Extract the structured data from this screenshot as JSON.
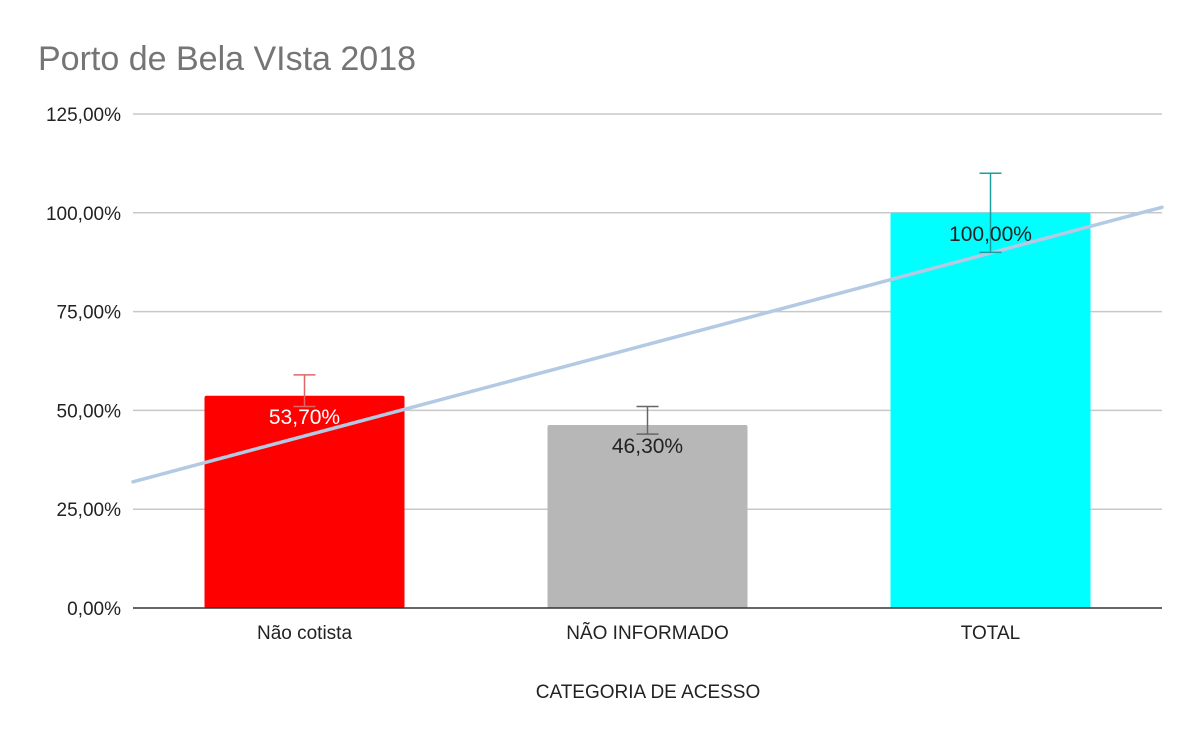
{
  "chart_data": {
    "type": "bar",
    "title": "Porto de Bela VIsta 2018",
    "xlabel": "CATEGORIA DE ACESSO",
    "ylabel": "",
    "categories": [
      "Não cotista",
      "NÃO INFORMADO",
      "TOTAL"
    ],
    "values": [
      53.7,
      46.3,
      100.0
    ],
    "data_labels": [
      "53,70%",
      "46,30%",
      "100,00%"
    ],
    "error_bar_upper": [
      59.0,
      51.0,
      110.0
    ],
    "error_bar_lower": [
      51.0,
      44.0,
      90.0
    ],
    "bar_colors": [
      "#ff0000",
      "#b7b7b7",
      "#00ffff"
    ],
    "error_bar_colors": [
      "#e06666",
      "#666666",
      "#1a9e9e"
    ],
    "label_colors": [
      "#ffffff",
      "#222222",
      "#222222"
    ],
    "ylim": [
      0,
      125
    ],
    "yticks": [
      0,
      25,
      50,
      75,
      100,
      125
    ],
    "ytick_labels": [
      "0,00%",
      "25,00%",
      "50,00%",
      "75,00%",
      "100,00%",
      "125,00%"
    ],
    "trendline": {
      "type": "linear",
      "color": "#b4c9e3"
    },
    "grid": true,
    "legend": "none"
  }
}
